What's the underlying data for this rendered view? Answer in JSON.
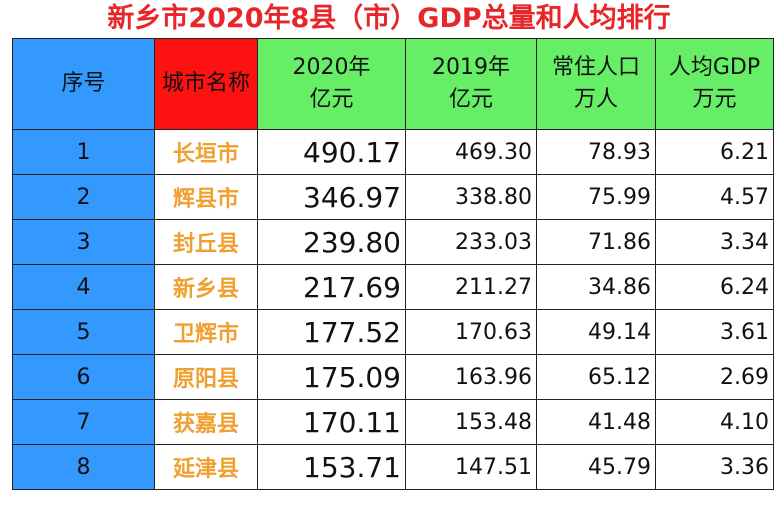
{
  "header": {
    "title": "新乡市2020年8县（市）GDP总量和人均排行"
  },
  "table": {
    "columns": [
      [
        "序号"
      ],
      [
        "城市名称"
      ],
      [
        "2020年",
        "亿元"
      ],
      [
        "2019年",
        "亿元"
      ],
      [
        "常住人口",
        "万人"
      ],
      [
        "人均GDP",
        "万元"
      ]
    ],
    "rows": [
      [
        "1",
        "长垣市",
        "490.17",
        "469.30",
        "78.93",
        "6.21"
      ],
      [
        "2",
        "辉县市",
        "346.97",
        "338.80",
        "75.99",
        "4.57"
      ],
      [
        "3",
        "封丘县",
        "239.80",
        "233.03",
        "71.86",
        "3.34"
      ],
      [
        "4",
        "新乡县",
        "217.69",
        "211.27",
        "34.86",
        "6.24"
      ],
      [
        "5",
        "卫辉市",
        "177.52",
        "170.63",
        "49.14",
        "3.61"
      ],
      [
        "6",
        "原阳县",
        "175.09",
        "163.96",
        "65.12",
        "2.69"
      ],
      [
        "7",
        "获嘉县",
        "170.11",
        "153.48",
        "41.48",
        "4.10"
      ],
      [
        "8",
        "延津县",
        "153.71",
        "147.51",
        "45.79",
        "3.36"
      ]
    ]
  }
}
